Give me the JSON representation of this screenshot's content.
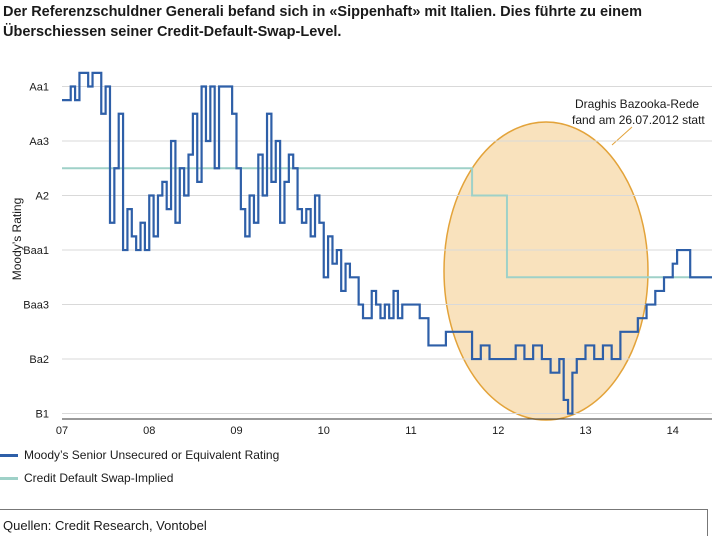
{
  "title": "Der Referenzschuldner Generali befand sich in «Sippenhaft» mit Italien. Dies führte zu einem Überschiessen seiner Credit-Default-Swap-Level.",
  "source": "Quellen: Credit Research, Vontobel",
  "colors": {
    "rating": "#2e5fa8",
    "cds": "#9fd1c8",
    "ellipse_fill": "#f9e2bd",
    "ellipse_stroke": "#e3a33a"
  },
  "chart_data": {
    "type": "line",
    "title": "",
    "xlabel": "",
    "ylabel": "Moody’s Rating",
    "x_ticks": [
      "07",
      "08",
      "09",
      "10",
      "11",
      "12",
      "13",
      "14"
    ],
    "x_tick_values": [
      2007,
      2008,
      2009,
      2010,
      2011,
      2012,
      2013,
      2014
    ],
    "y_ticks": [
      "Aa1",
      "Aa3",
      "A2",
      "Baa1",
      "Baa3",
      "Ba2",
      "B1"
    ],
    "y_tick_values": [
      1,
      3,
      5,
      7,
      9,
      11,
      13
    ],
    "xlim": [
      2007,
      2014.45
    ],
    "ylim": [
      0.1,
      13.2
    ],
    "series": [
      {
        "name": "Moody’s Senior Unsecured or Equivalent Rating",
        "x": [
          2007.0,
          2007.05,
          2007.1,
          2007.15,
          2007.2,
          2007.25,
          2007.3,
          2007.35,
          2007.4,
          2007.45,
          2007.5,
          2007.55,
          2007.6,
          2007.65,
          2007.7,
          2007.75,
          2007.8,
          2007.85,
          2007.9,
          2007.95,
          2008.0,
          2008.05,
          2008.1,
          2008.15,
          2008.2,
          2008.25,
          2008.3,
          2008.35,
          2008.4,
          2008.45,
          2008.5,
          2008.55,
          2008.6,
          2008.65,
          2008.7,
          2008.75,
          2008.8,
          2008.85,
          2008.9,
          2008.95,
          2009.0,
          2009.05,
          2009.1,
          2009.15,
          2009.2,
          2009.25,
          2009.3,
          2009.35,
          2009.4,
          2009.45,
          2009.5,
          2009.55,
          2009.6,
          2009.65,
          2009.7,
          2009.75,
          2009.8,
          2009.85,
          2009.9,
          2009.95,
          2010.0,
          2010.05,
          2010.1,
          2010.15,
          2010.2,
          2010.25,
          2010.3,
          2010.35,
          2010.4,
          2010.45,
          2010.5,
          2010.55,
          2010.6,
          2010.65,
          2010.7,
          2010.75,
          2010.8,
          2010.85,
          2010.9,
          2010.95,
          2011.0,
          2011.1,
          2011.2,
          2011.3,
          2011.4,
          2011.5,
          2011.6,
          2011.7,
          2011.8,
          2011.9,
          2012.0,
          2012.1,
          2012.2,
          2012.3,
          2012.4,
          2012.5,
          2012.6,
          2012.7,
          2012.75,
          2012.8,
          2012.85,
          2012.9,
          2013.0,
          2013.1,
          2013.2,
          2013.3,
          2013.4,
          2013.5,
          2013.6,
          2013.7,
          2013.8,
          2013.9,
          2014.0,
          2014.05,
          2014.1,
          2014.2,
          2014.3,
          2014.45
        ],
        "values": [
          1.5,
          1.5,
          1.0,
          1.5,
          0.5,
          0.5,
          1.0,
          0.5,
          0.5,
          2.0,
          1.0,
          6.0,
          4.0,
          2.0,
          7.0,
          5.5,
          6.5,
          7.0,
          6.0,
          7.0,
          5.0,
          6.5,
          5.0,
          4.5,
          5.5,
          3.0,
          6.0,
          4.0,
          5.0,
          3.5,
          2.0,
          4.5,
          1.0,
          3.0,
          1.0,
          4.0,
          1.0,
          1.0,
          1.0,
          2.0,
          4.0,
          5.5,
          6.5,
          5.0,
          6.0,
          3.5,
          5.0,
          2.0,
          4.5,
          3.0,
          6.0,
          4.5,
          3.5,
          4.0,
          5.5,
          6.0,
          5.5,
          6.5,
          5.0,
          6.0,
          8.0,
          6.5,
          7.5,
          7.0,
          8.5,
          7.5,
          8.0,
          8.0,
          9.0,
          9.5,
          9.5,
          8.5,
          9.0,
          9.5,
          9.0,
          9.5,
          8.5,
          9.5,
          9.0,
          9.0,
          9.0,
          9.5,
          10.5,
          10.5,
          10.0,
          10.0,
          10.0,
          11.0,
          10.5,
          11.0,
          11.0,
          11.0,
          10.5,
          11.0,
          10.5,
          11.0,
          11.5,
          11.0,
          12.5,
          13.0,
          11.5,
          11.0,
          10.5,
          11.0,
          10.5,
          11.0,
          10.0,
          10.0,
          9.5,
          9.0,
          8.5,
          8.0,
          7.5,
          7.0,
          7.0,
          8.0,
          8.0,
          8.0
        ]
      },
      {
        "name": "Credit Default Swap-Implied",
        "x": [
          2007.0,
          2011.7,
          2011.7,
          2012.1,
          2012.1,
          2014.45
        ],
        "values": [
          4.0,
          4.0,
          5.0,
          5.0,
          8.0,
          8.0
        ]
      }
    ],
    "legend": "bottom-left",
    "annotations": [
      "Draghis Bazooka-Rede",
      "fand am 26.07.2012 statt"
    ]
  }
}
